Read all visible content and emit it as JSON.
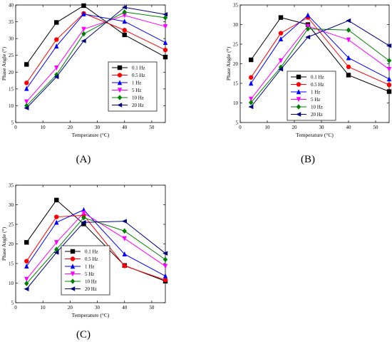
{
  "chart_data": [
    {
      "type": "line",
      "panel_label": "(A)",
      "xlabel": "Temperature (°C)",
      "ylabel": "Phase Angle (°)",
      "xlim": [
        0,
        55
      ],
      "ylim": [
        5,
        40
      ],
      "xticks": [
        0,
        10,
        20,
        30,
        40,
        50
      ],
      "yticks": [
        5,
        10,
        15,
        20,
        25,
        30,
        35,
        40
      ],
      "x": [
        4,
        15,
        25,
        40,
        55
      ],
      "legend_position": "lower-right",
      "series": [
        {
          "name": "0.1 Hz",
          "color": "#000000",
          "marker": "square",
          "values": [
            22.3,
            34.8,
            39.8,
            31.1,
            24.5
          ]
        },
        {
          "name": "0.5 Hz",
          "color": "#ff0000",
          "marker": "circle",
          "values": [
            16.8,
            29.7,
            37.5,
            32.5,
            26.6
          ]
        },
        {
          "name": "1 Hz",
          "color": "#0000ff",
          "marker": "triangle-up",
          "values": [
            15.1,
            27.7,
            37.3,
            35.1,
            28.8
          ]
        },
        {
          "name": "5 Hz",
          "color": "#ff00ff",
          "marker": "triangle-down",
          "values": [
            11.2,
            21.3,
            32.8,
            36.9,
            33.6
          ]
        },
        {
          "name": "10 Hz",
          "color": "#008000",
          "marker": "diamond",
          "values": [
            10.0,
            19.2,
            31.4,
            37.9,
            36.2
          ]
        },
        {
          "name": "20 Hz",
          "color": "#000080",
          "marker": "triangle-left",
          "values": [
            9.3,
            18.6,
            29.3,
            39.3,
            37.2
          ]
        }
      ]
    },
    {
      "type": "line",
      "panel_label": "(B)",
      "xlabel": "Temperature (°C)",
      "ylabel": "Phase Angle (°)",
      "xlim": [
        0,
        55
      ],
      "ylim": [
        5,
        35
      ],
      "xticks": [
        0,
        10,
        20,
        30,
        40,
        50
      ],
      "yticks": [
        5,
        10,
        15,
        20,
        25,
        30,
        35
      ],
      "x": [
        4,
        15,
        25,
        40,
        55
      ],
      "legend_position": "right",
      "series": [
        {
          "name": "0.1 Hz",
          "color": "#000000",
          "marker": "square",
          "values": [
            21.0,
            31.8,
            30.0,
            17.1,
            12.9
          ]
        },
        {
          "name": "0.5 Hz",
          "color": "#ff0000",
          "marker": "circle",
          "values": [
            16.5,
            27.8,
            31.8,
            19.2,
            14.6
          ]
        },
        {
          "name": "1 Hz",
          "color": "#0000ff",
          "marker": "triangle-up",
          "values": [
            15.0,
            26.3,
            32.4,
            21.5,
            16.1
          ]
        },
        {
          "name": "5 Hz",
          "color": "#ff00ff",
          "marker": "triangle-down",
          "values": [
            11.0,
            20.8,
            29.6,
            26.1,
            18.6
          ]
        },
        {
          "name": "10 Hz",
          "color": "#008000",
          "marker": "diamond",
          "values": [
            10.1,
            19.1,
            28.9,
            28.6,
            20.8
          ]
        },
        {
          "name": "20 Hz",
          "color": "#000080",
          "marker": "triangle-left",
          "values": [
            9.0,
            18.6,
            26.8,
            31.0,
            24.6
          ]
        }
      ]
    },
    {
      "type": "line",
      "panel_label": "(C)",
      "xlabel": "Temperature (°C)",
      "ylabel": "Phase Angle (°)",
      "xlim": [
        0,
        55
      ],
      "ylim": [
        5,
        35
      ],
      "xticks": [
        0,
        10,
        20,
        30,
        40,
        50
      ],
      "yticks": [
        5,
        10,
        15,
        20,
        25,
        30,
        35
      ],
      "x": [
        4,
        15,
        25,
        40,
        55
      ],
      "legend_position": "left",
      "series": [
        {
          "name": "0.1 Hz",
          "color": "#000000",
          "marker": "square",
          "values": [
            20.4,
            31.2,
            25.1,
            14.5,
            10.5
          ]
        },
        {
          "name": "0.5 Hz",
          "color": "#ff0000",
          "marker": "circle",
          "values": [
            15.6,
            26.9,
            27.3,
            14.4,
            10.8
          ]
        },
        {
          "name": "1 Hz",
          "color": "#0000ff",
          "marker": "triangle-up",
          "values": [
            14.3,
            25.5,
            28.7,
            17.4,
            11.8
          ]
        },
        {
          "name": "5 Hz",
          "color": "#ff00ff",
          "marker": "triangle-down",
          "values": [
            11.0,
            20.4,
            27.9,
            21.4,
            14.3
          ]
        },
        {
          "name": "10 Hz",
          "color": "#008000",
          "marker": "diamond",
          "values": [
            9.9,
            18.6,
            26.7,
            23.3,
            16.0
          ]
        },
        {
          "name": "20 Hz",
          "color": "#000080",
          "marker": "triangle-left",
          "values": [
            8.5,
            17.8,
            25.5,
            25.8,
            17.6
          ]
        }
      ]
    }
  ]
}
